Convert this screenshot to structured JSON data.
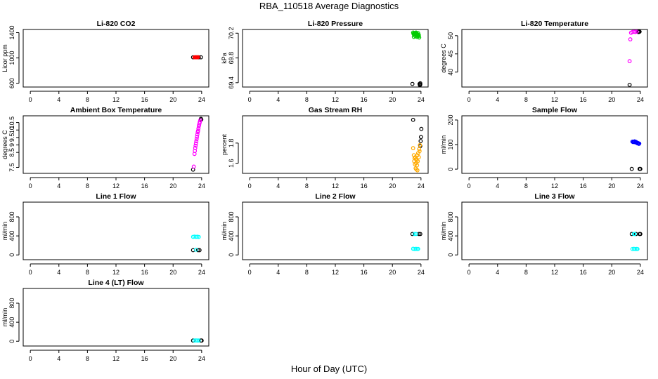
{
  "title": "RBA_110518  Average Diagnostics",
  "xlabel": "Hour of Day (UTC)",
  "chart_data": [
    {
      "type": "scatter",
      "title": "Li-820 CO2",
      "ylabel": "Licor ppm",
      "xlim": [
        -1,
        25
      ],
      "xticks": [
        0,
        4,
        8,
        12,
        16,
        20,
        24
      ],
      "ylim": [
        540,
        1450
      ],
      "yticks": [
        600,
        1000,
        1400
      ],
      "series": [
        {
          "name": "black",
          "color": "#000000",
          "points": [
            [
              22.8,
              1010
            ],
            [
              23.6,
              1010
            ],
            [
              23.9,
              1010
            ]
          ]
        },
        {
          "name": "red",
          "color": "#ff0000",
          "points": [
            [
              23.0,
              1010
            ],
            [
              23.1,
              1012
            ],
            [
              23.2,
              1010
            ],
            [
              23.3,
              1011
            ],
            [
              23.4,
              1010
            ],
            [
              23.5,
              1012
            ]
          ]
        }
      ]
    },
    {
      "type": "scatter",
      "title": "Li-820 Pressure",
      "ylabel": "kPa",
      "xlim": [
        -1,
        25
      ],
      "xticks": [
        0,
        4,
        8,
        12,
        16,
        20,
        24
      ],
      "ylim": [
        69.33,
        70.26
      ],
      "yticks": [
        69.4,
        69.8,
        70.2
      ],
      "series": [
        {
          "name": "black",
          "color": "#000000",
          "points": [
            [
              22.8,
              69.38
            ],
            [
              23.8,
              69.38
            ],
            [
              23.9,
              69.37
            ],
            [
              23.85,
              69.36
            ],
            [
              23.9,
              69.39
            ]
          ]
        },
        {
          "name": "green",
          "color": "#00cc00",
          "points": [
            [
              22.9,
              70.21
            ],
            [
              23.0,
              70.18
            ],
            [
              23.0,
              70.14
            ],
            [
              23.1,
              70.2
            ],
            [
              23.15,
              70.16
            ],
            [
              23.2,
              70.19
            ],
            [
              23.25,
              70.15
            ],
            [
              23.3,
              70.21
            ],
            [
              23.35,
              70.17
            ],
            [
              23.4,
              70.2
            ],
            [
              23.45,
              70.14
            ],
            [
              23.5,
              70.18
            ],
            [
              23.55,
              70.16
            ],
            [
              23.6,
              70.2
            ],
            [
              23.7,
              70.17
            ],
            [
              23.75,
              70.13
            ],
            [
              22.95,
              70.19
            ],
            [
              23.05,
              70.2
            ],
            [
              23.65,
              70.15
            ]
          ]
        }
      ]
    },
    {
      "type": "scatter",
      "title": "Li-820 Temperature",
      "ylabel": "degrees C",
      "xlim": [
        -1,
        25
      ],
      "xticks": [
        0,
        4,
        8,
        12,
        16,
        20,
        24
      ],
      "ylim": [
        35.9,
        51.7
      ],
      "yticks": [
        40,
        45,
        50
      ],
      "series": [
        {
          "name": "black",
          "color": "#000000",
          "points": [
            [
              22.5,
              36.5
            ],
            [
              23.7,
              51.0
            ],
            [
              23.8,
              51.0
            ],
            [
              23.9,
              51.1
            ],
            [
              23.75,
              51.2
            ]
          ]
        },
        {
          "name": "magenta",
          "color": "#ff00ff",
          "points": [
            [
              22.5,
              43.0
            ],
            [
              22.6,
              49.0
            ],
            [
              22.7,
              50.8
            ],
            [
              22.9,
              51.0
            ],
            [
              23.1,
              51.1
            ],
            [
              23.3,
              51.0
            ],
            [
              23.5,
              51.1
            ]
          ]
        }
      ]
    },
    {
      "type": "scatter",
      "title": "Ambient Box Temperature",
      "ylabel": "degrees C",
      "xlim": [
        -1,
        25
      ],
      "xticks": [
        0,
        4,
        8,
        12,
        16,
        20,
        24
      ],
      "ylim": [
        7.1,
        10.95
      ],
      "yticks": [
        7.5,
        8.5,
        9.0,
        9.5,
        10.0,
        10.5
      ],
      "series": [
        {
          "name": "black",
          "color": "#000000",
          "points": [
            [
              22.8,
              7.35
            ],
            [
              23.9,
              10.75
            ],
            [
              23.95,
              10.7
            ]
          ]
        },
        {
          "name": "magenta",
          "color": "#ff00ff",
          "points": [
            [
              22.9,
              7.55
            ],
            [
              23.0,
              8.4
            ],
            [
              23.05,
              8.6
            ],
            [
              23.1,
              8.8
            ],
            [
              23.15,
              8.95
            ],
            [
              23.2,
              9.1
            ],
            [
              23.25,
              9.25
            ],
            [
              23.3,
              9.4
            ],
            [
              23.35,
              9.55
            ],
            [
              23.4,
              9.7
            ],
            [
              23.45,
              9.85
            ],
            [
              23.5,
              9.95
            ],
            [
              23.55,
              10.1
            ],
            [
              23.6,
              10.25
            ],
            [
              23.65,
              10.35
            ],
            [
              23.7,
              10.45
            ],
            [
              23.75,
              10.55
            ],
            [
              23.8,
              10.65
            ]
          ]
        }
      ]
    },
    {
      "type": "scatter",
      "title": "Gas Stream RH",
      "ylabel": "percent",
      "xlim": [
        -1,
        25
      ],
      "xticks": [
        0,
        4,
        8,
        12,
        16,
        20,
        24
      ],
      "ylim": [
        1.5,
        2.07
      ],
      "yticks": [
        1.6,
        1.8
      ],
      "series": [
        {
          "name": "black",
          "color": "#000000",
          "points": [
            [
              22.9,
              2.03
            ],
            [
              23.9,
              1.77
            ],
            [
              23.95,
              1.82
            ],
            [
              24.0,
              1.86
            ],
            [
              24.05,
              1.94
            ]
          ]
        },
        {
          "name": "orange",
          "color": "#ffaa00",
          "points": [
            [
              22.9,
              1.75
            ],
            [
              23.0,
              1.68
            ],
            [
              23.05,
              1.62
            ],
            [
              23.1,
              1.65
            ],
            [
              23.15,
              1.59
            ],
            [
              23.2,
              1.66
            ],
            [
              23.25,
              1.55
            ],
            [
              23.3,
              1.6
            ],
            [
              23.35,
              1.54
            ],
            [
              23.4,
              1.63
            ],
            [
              23.45,
              1.58
            ],
            [
              23.5,
              1.68
            ],
            [
              23.55,
              1.62
            ],
            [
              23.6,
              1.7
            ],
            [
              23.7,
              1.66
            ],
            [
              23.75,
              1.74
            ],
            [
              23.8,
              1.72
            ],
            [
              23.85,
              1.78
            ],
            [
              23.5,
              1.53
            ],
            [
              23.3,
              1.64
            ]
          ]
        }
      ]
    },
    {
      "type": "scatter",
      "title": "Sample Flow",
      "ylabel": "ml/min",
      "xlim": [
        -1,
        25
      ],
      "xticks": [
        0,
        4,
        8,
        12,
        16,
        20,
        24
      ],
      "ylim": [
        -17,
        217
      ],
      "yticks": [
        0,
        100,
        200
      ],
      "series": [
        {
          "name": "black",
          "color": "#000000",
          "points": [
            [
              22.8,
              1
            ],
            [
              23.9,
              1
            ],
            [
              24.0,
              1
            ]
          ]
        },
        {
          "name": "blue",
          "color": "#0000ff",
          "points": [
            [
              22.9,
              112
            ],
            [
              23.0,
              110
            ],
            [
              23.1,
              111
            ],
            [
              23.2,
              113
            ],
            [
              23.3,
              109
            ],
            [
              23.4,
              111
            ],
            [
              23.5,
              108
            ],
            [
              23.6,
              105
            ],
            [
              23.7,
              106
            ],
            [
              23.8,
              103
            ],
            [
              23.85,
              104
            ]
          ]
        }
      ]
    },
    {
      "type": "scatter",
      "title": "Line 1 Flow",
      "ylabel": "ml/min",
      "xlim": [
        -1,
        25
      ],
      "xticks": [
        0,
        4,
        8,
        12,
        16,
        20,
        24
      ],
      "ylim": [
        -100,
        1110
      ],
      "yticks": [
        0,
        400,
        800
      ],
      "series": [
        {
          "name": "black",
          "color": "#000000",
          "points": [
            [
              22.8,
              100
            ],
            [
              23.5,
              100
            ],
            [
              23.7,
              100
            ]
          ]
        },
        {
          "name": "cyan",
          "color": "#00ffff",
          "points": [
            [
              22.8,
              380
            ],
            [
              23.0,
              385
            ],
            [
              23.2,
              380
            ],
            [
              23.4,
              382
            ],
            [
              23.6,
              378
            ],
            [
              23.2,
              110
            ]
          ]
        }
      ]
    },
    {
      "type": "scatter",
      "title": "Line 2 Flow",
      "ylabel": "ml/min",
      "xlim": [
        -1,
        25
      ],
      "xticks": [
        0,
        4,
        8,
        12,
        16,
        20,
        24
      ],
      "ylim": [
        -100,
        1110
      ],
      "yticks": [
        0,
        400,
        800
      ],
      "series": [
        {
          "name": "black",
          "color": "#000000",
          "points": [
            [
              22.8,
              440
            ],
            [
              23.7,
              440
            ],
            [
              23.9,
              440
            ]
          ]
        },
        {
          "name": "cyan",
          "color": "#00ffff",
          "points": [
            [
              23.1,
              440
            ],
            [
              23.3,
              440
            ],
            [
              22.9,
              130
            ],
            [
              23.1,
              125
            ],
            [
              23.3,
              128
            ],
            [
              23.5,
              125
            ],
            [
              23.6,
              127
            ]
          ]
        }
      ]
    },
    {
      "type": "scatter",
      "title": "Line 3 Flow",
      "ylabel": "ml/min",
      "xlim": [
        -1,
        25
      ],
      "xticks": [
        0,
        4,
        8,
        12,
        16,
        20,
        24
      ],
      "ylim": [
        -100,
        1110
      ],
      "yticks": [
        0,
        400,
        800
      ],
      "series": [
        {
          "name": "black",
          "color": "#000000",
          "points": [
            [
              22.8,
              440
            ],
            [
              23.4,
              440
            ],
            [
              23.9,
              440
            ],
            [
              24.0,
              440
            ]
          ]
        },
        {
          "name": "cyan",
          "color": "#00ffff",
          "points": [
            [
              23.1,
              440
            ],
            [
              23.2,
              440
            ],
            [
              22.9,
              125
            ],
            [
              23.1,
              128
            ],
            [
              23.3,
              125
            ],
            [
              23.5,
              126
            ],
            [
              23.6,
              125
            ]
          ]
        }
      ]
    },
    {
      "type": "scatter",
      "title": "Line 4 (LT) Flow",
      "ylabel": "ml/min",
      "xlim": [
        -1,
        25
      ],
      "xticks": [
        0,
        4,
        8,
        12,
        16,
        20,
        24
      ],
      "ylim": [
        -100,
        1110
      ],
      "yticks": [
        0,
        400,
        800
      ],
      "series": [
        {
          "name": "black",
          "color": "#000000",
          "points": [
            [
              22.8,
              15
            ],
            [
              23.9,
              15
            ],
            [
              24.0,
              15
            ]
          ]
        },
        {
          "name": "cyan",
          "color": "#00ffff",
          "points": [
            [
              23.0,
              15
            ],
            [
              23.2,
              18
            ],
            [
              23.4,
              15
            ],
            [
              23.6,
              16
            ]
          ]
        }
      ]
    }
  ]
}
